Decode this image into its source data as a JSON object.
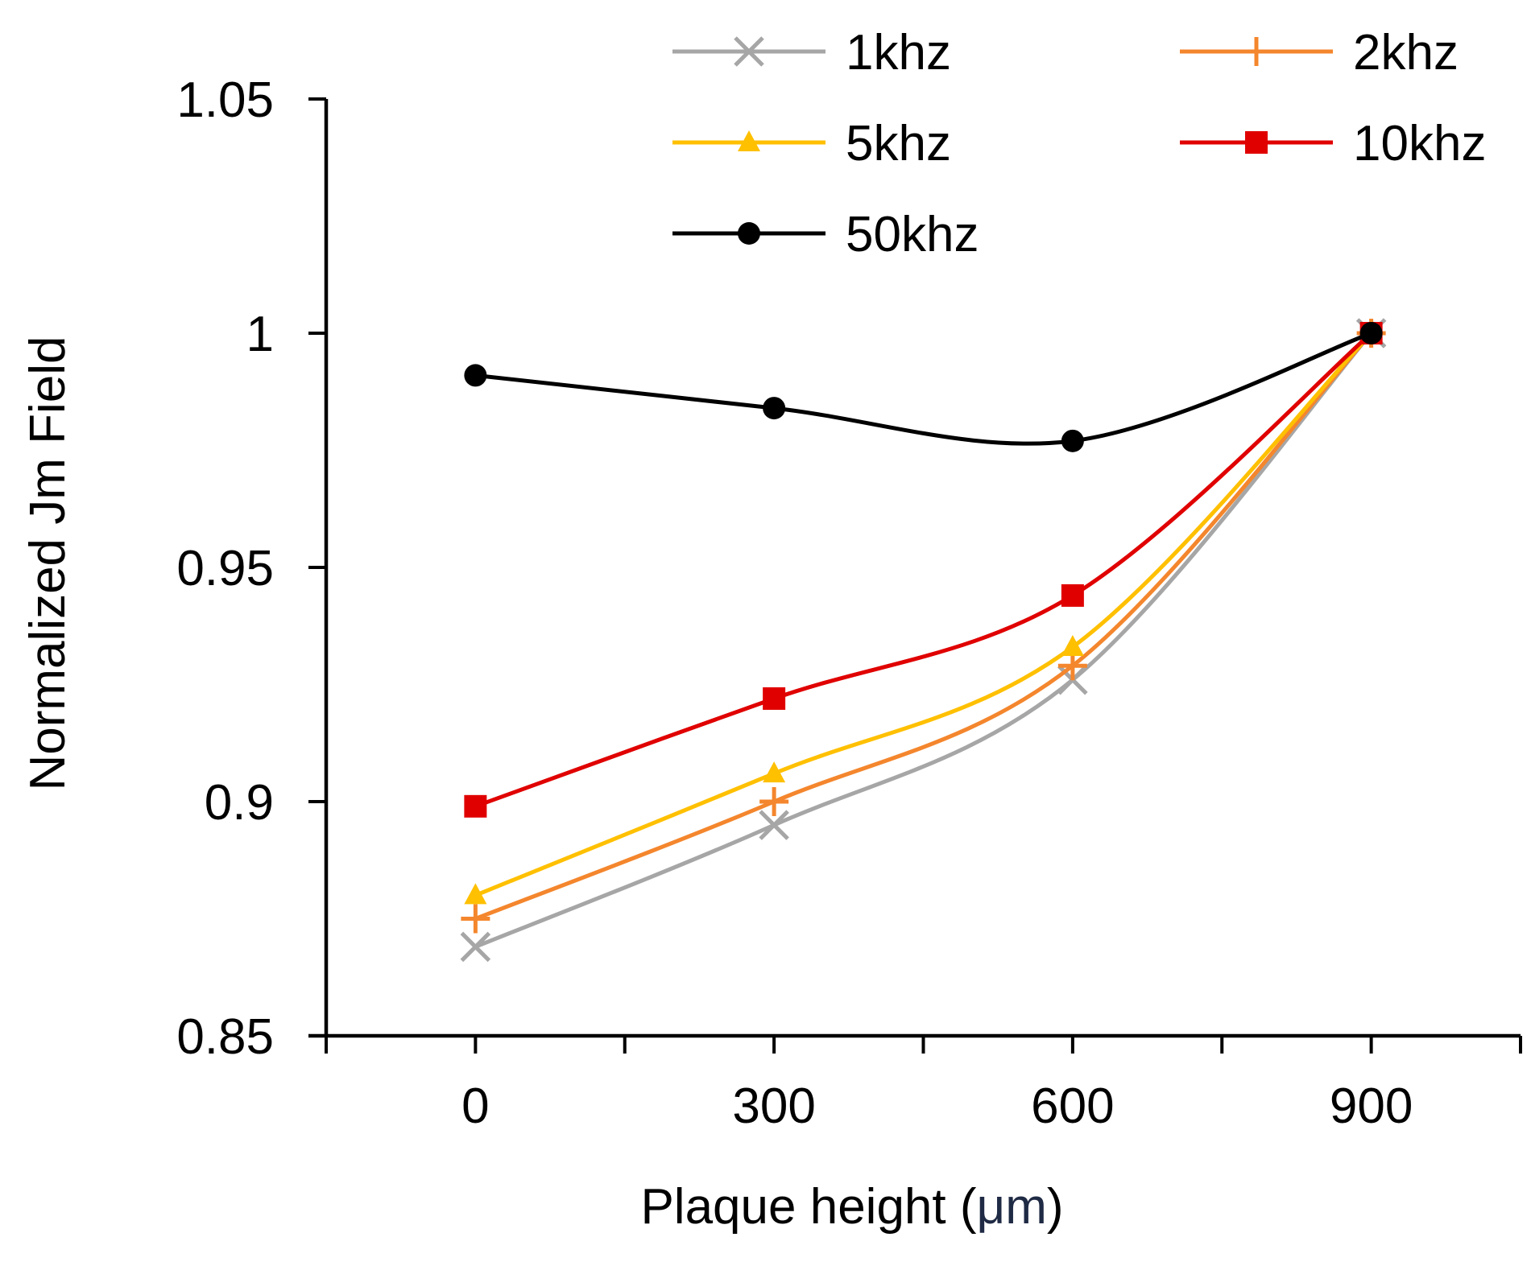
{
  "chart_data": {
    "type": "line",
    "title": "",
    "xlabel": "Plaque height (μm)",
    "xlabel_parts": {
      "main": "Plaque height (",
      "unit": "μm",
      "close": ")"
    },
    "ylabel": "Normalized Jm Field",
    "x": [
      0,
      300,
      600,
      900
    ],
    "x_tick_labels": [
      "0",
      "300",
      "600",
      "900"
    ],
    "xlim": [
      -150,
      1050
    ],
    "ylim": [
      0.85,
      1.05
    ],
    "y_ticks": [
      0.85,
      0.9,
      0.95,
      1.0,
      1.05
    ],
    "y_tick_labels": [
      "0.85",
      "0.9",
      "0.95",
      "1",
      "1.05"
    ],
    "grid": false,
    "legend_position": "top",
    "series": [
      {
        "name": "1khz",
        "color": "#A6A6A6",
        "marker": "x",
        "values": [
          0.869,
          0.895,
          0.926,
          1.0
        ]
      },
      {
        "name": "2khz",
        "color": "#F4862D",
        "marker": "plus",
        "values": [
          0.875,
          0.9,
          0.929,
          1.0
        ]
      },
      {
        "name": "5khz",
        "color": "#FFC000",
        "marker": "triangle",
        "values": [
          0.88,
          0.906,
          0.933,
          1.0
        ]
      },
      {
        "name": "10khz",
        "color": "#E00000",
        "marker": "square",
        "values": [
          0.899,
          0.922,
          0.944,
          1.0
        ]
      },
      {
        "name": "50khz",
        "color": "#000000",
        "marker": "circle",
        "values": [
          0.991,
          0.984,
          0.977,
          1.0
        ]
      }
    ],
    "colors": {
      "axis": "#000000",
      "unit_text": "#1F2A44"
    }
  }
}
